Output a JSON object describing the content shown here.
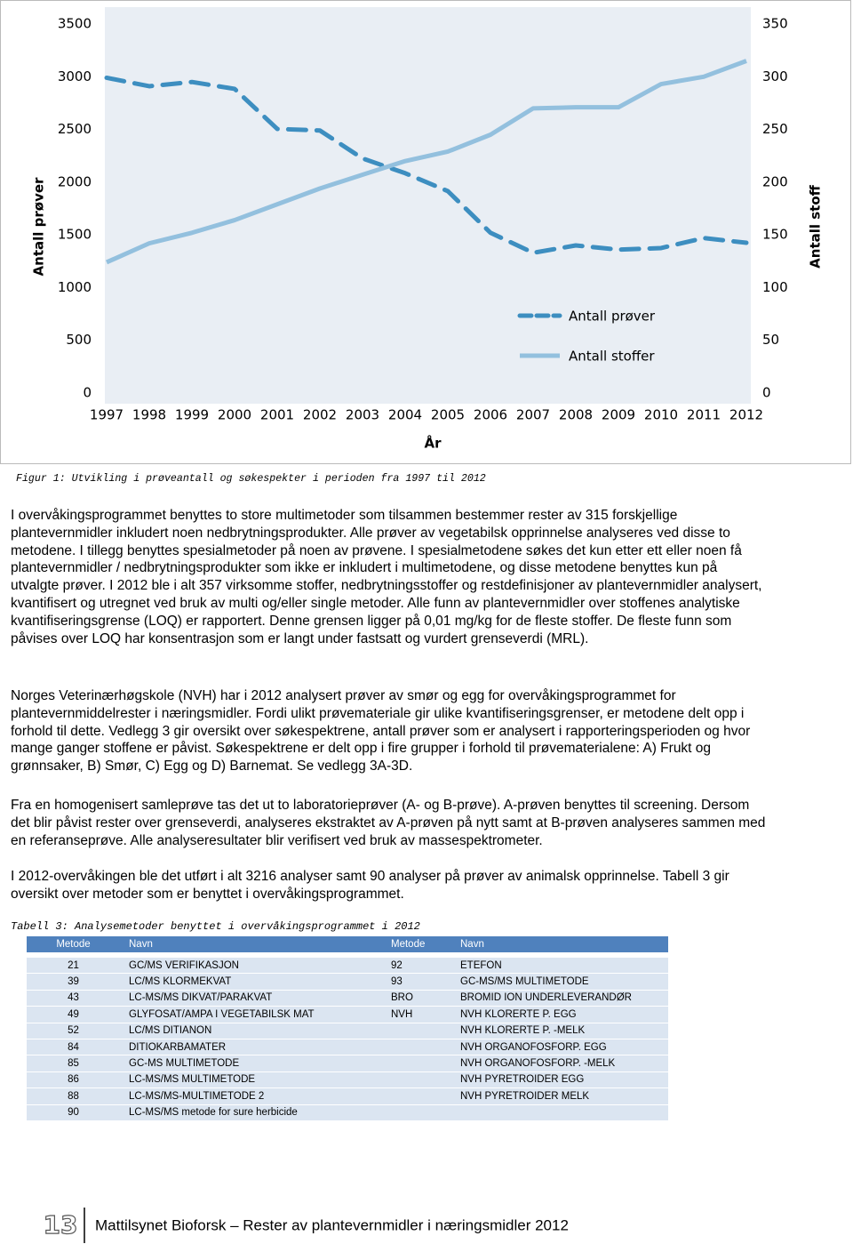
{
  "chart_data": {
    "type": "line",
    "categories": [
      "1997",
      "1998",
      "1999",
      "2000",
      "2001",
      "2002",
      "2003",
      "2004",
      "2005",
      "2006",
      "2007",
      "2008",
      "2009",
      "2010",
      "2011",
      "2012"
    ],
    "series": [
      {
        "name": "Antall prøver",
        "color": "#3d8ec0",
        "dashed": true,
        "values": [
          2990,
          2910,
          2950,
          2885,
          2505,
          2490,
          2225,
          2085,
          1915,
          1520,
          1330,
          1400,
          1360,
          1375,
          1470,
          1425
        ]
      },
      {
        "name": "Antall stoffer",
        "color": "#93c0de",
        "axis": "y2",
        "values": [
          124,
          142,
          152,
          164,
          179,
          194,
          207,
          220,
          229,
          245,
          270,
          271,
          271,
          293,
          300,
          315
        ]
      }
    ],
    "ylim": [
      0,
      3500
    ],
    "yticks": [
      0,
      500,
      1000,
      1500,
      2000,
      2500,
      3000,
      3500
    ],
    "y2lim": [
      0,
      350
    ],
    "y2ticks": [
      0,
      50,
      100,
      150,
      200,
      250,
      300,
      350
    ],
    "y_label": "Antall prøver",
    "y2_label": "Antall stoff",
    "x_label": "År",
    "legend": "lower right"
  },
  "figure_caption": "Figur 1: Utvikling i prøveantall og søkespekter i perioden fra 1997 til 2012",
  "paragraphs": [
    "I overvåkingsprogrammet benyttes to store multimetoder som tilsammen bestemmer rester av 315 forskjellige plantevernmidler inkludert noen nedbrytningsprodukter. Alle prøver av vegetabilsk opprinnelse analyseres ved disse to metodene. I tillegg benyttes spesialmetoder på noen av prøvene. I spesialmetodene søkes det kun etter ett eller noen få plantevernmidler / nedbrytningsprodukter som ikke er inkludert i multimetodene, og disse metodene benyttes kun på utvalgte prøver. I 2012 ble i alt 357 virksomme stoffer, nedbrytningsstoffer og restdefinisjoner av plantevernmidler analysert, kvantifisert og utregnet ved bruk av multi og/eller single metoder. Alle funn av plantevernmidler over stoffenes analytiske kvantifiseringsgrense (LOQ) er rapportert. Denne grensen ligger på 0,01 mg/kg for de fleste stoffer. De fleste funn som påvises over LOQ har konsentrasjon som er langt under fastsatt og vurdert grenseverdi (MRL).",
    "Norges Veterinærhøgskole (NVH) har i 2012 analysert prøver av smør og egg for overvåkingsprogrammet for plantevernmiddelrester i næringsmidler. Fordi ulikt prøvemateriale gir ulike kvantifiseringsgrenser, er metodene delt opp i forhold til dette. Vedlegg 3 gir oversikt over søkespektrene, antall prøver som er analysert i rapporteringsperioden og hvor mange ganger stoffene er påvist. Søkespektrene er delt opp i fire grupper i forhold til prøvematerialene: A) Frukt og grønnsaker, B) Smør, C) Egg og D) Barnemat. Se vedlegg 3A-3D.",
    "Fra en homogenisert samleprøve tas det ut to laboratorieprøver (A- og B-prøve). A-prøven benyttes til screening. Dersom det blir påvist rester over grenseverdi, analyseres ekstraktet av A-prøven på nytt samt at B-prøven analyseres sammen med en referanseprøve. Alle analyseresultater blir verifisert ved bruk av massespektrometer.",
    "I 2012-overvåkingen ble det utført i alt 3216 analyser samt 90 analyser på prøver av animalsk opprinnelse. Tabell 3 gir oversikt over metoder som er benyttet i overvåkingsprogrammet."
  ],
  "table": {
    "caption": "Tabell 3: Analysemetoder benyttet i overvåkingsprogrammet i 2012",
    "header": [
      "Metode",
      "Navn",
      "Metode",
      "Navn"
    ],
    "rows": [
      [
        "21",
        "GC/MS VERIFIKASJON",
        "92",
        "ETEFON"
      ],
      [
        "39",
        "LC/MS KLORMEKVAT",
        "93",
        "GC-MS/MS MULTIMETODE"
      ],
      [
        "43",
        "LC-MS/MS DIKVAT/PARAKVAT",
        "BRO",
        "BROMID ION UNDERLEVERANDØR"
      ],
      [
        "49",
        "GLYFOSAT/AMPA I VEGETABILSK MAT",
        "NVH",
        "NVH KLORERTE P. EGG"
      ],
      [
        "52",
        "LC/MS DITIANON",
        null,
        "NVH KLORERTE P. -MELK"
      ],
      [
        "84",
        "DITIOKARBAMATER",
        null,
        "NVH ORGANOFOSFORP. EGG"
      ],
      [
        "85",
        "GC-MS MULTIMETODE",
        null,
        "NVH ORGANOFOSFORP. -MELK"
      ],
      [
        "86",
        "LC-MS/MS MULTIMETODE",
        null,
        "NVH PYRETROIDER EGG"
      ],
      [
        "88",
        "LC-MS/MS-MULTIMETODE 2",
        null,
        "NVH PYRETROIDER MELK"
      ],
      [
        "90",
        "LC-MS/MS metode for sure herbicide",
        null,
        null
      ]
    ]
  },
  "footer": {
    "page_number": "13",
    "text": "Mattilsynet Bioforsk – Rester av plantevernmidler i næringsmidler 2012"
  }
}
